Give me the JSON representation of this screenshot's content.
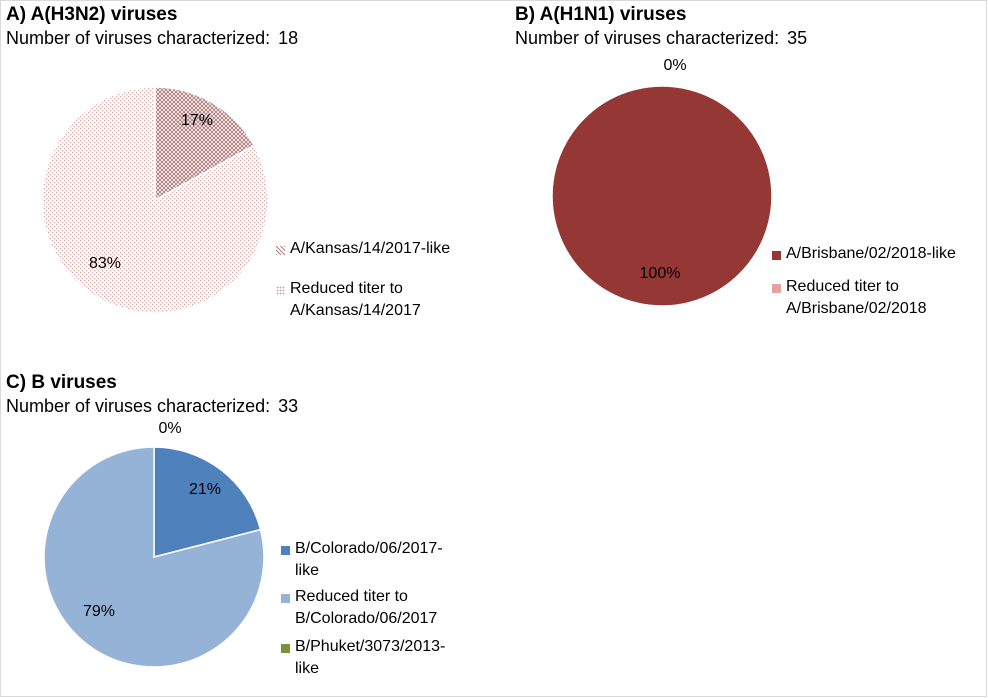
{
  "chart_data": [
    {
      "type": "pie",
      "title": "A) A(H3N2) viruses",
      "count_label": "Number of viruses characterized:",
      "count_value": "18",
      "categories": [
        "A/Kansas/14/2017-like",
        "Reduced titer to\nA/Kansas/14/2017"
      ],
      "values": [
        17,
        83
      ],
      "value_labels": [
        "17%",
        "83%"
      ],
      "colors": [
        "#c9a3a3",
        "#e8d2d2"
      ],
      "patterns": [
        "crosshatch",
        "dots"
      ],
      "legend_position": "right"
    },
    {
      "type": "pie",
      "title": "B) A(H1N1) viruses",
      "count_label": "Number of viruses characterized:",
      "count_value": "35",
      "categories": [
        "A/Brisbane/02/2018-like",
        "Reduced titer to\nA/Brisbane/02/2018"
      ],
      "values": [
        100,
        0
      ],
      "value_labels": [
        "100%",
        "0%"
      ],
      "colors": [
        "#953735",
        "#e6a1a0"
      ],
      "patterns": [
        "solid",
        "solid"
      ],
      "legend_position": "right"
    },
    {
      "type": "pie",
      "title": "C) B viruses",
      "count_label": "Number of viruses characterized:",
      "count_value": "33",
      "categories": [
        "B/Colorado/06/2017-\nlike",
        "Reduced titer to\nB/Colorado/06/2017",
        "B/Phuket/3073/2013-\nlike"
      ],
      "values": [
        21,
        79,
        0
      ],
      "value_labels": [
        "21%",
        "79%",
        "0%"
      ],
      "colors": [
        "#4f81bd",
        "#95b3d7",
        "#77933c"
      ],
      "patterns": [
        "solid",
        "solid",
        "solid"
      ],
      "legend_position": "right"
    }
  ]
}
